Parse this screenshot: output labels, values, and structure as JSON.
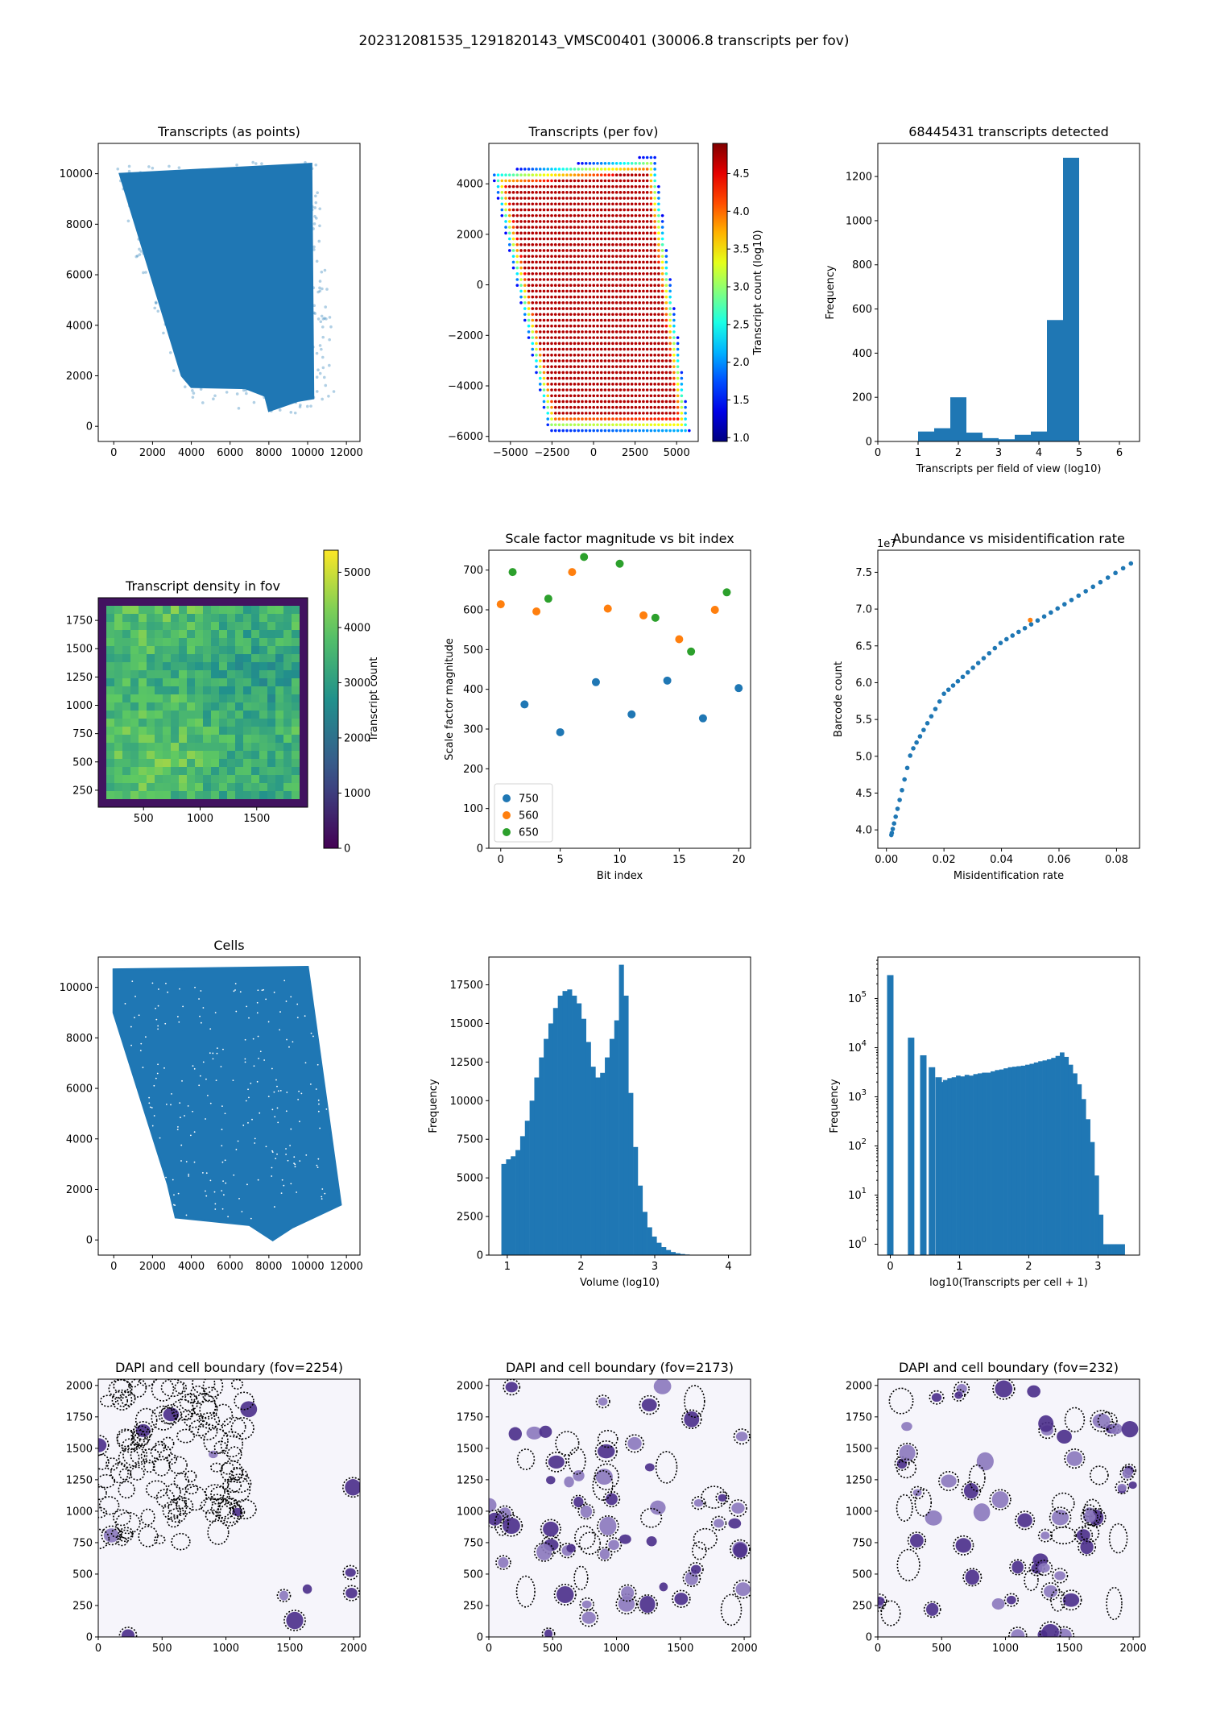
{
  "suptitle": "202312081535_1291820143_VMSC00401 (30006.8 transcripts per fov)",
  "colors": {
    "blue": "#1f77b4",
    "orange": "#ff7f0e",
    "green": "#2ca02c",
    "axis": "#000000"
  },
  "chart_data": [
    {
      "id": "transcripts_points",
      "type": "scatter",
      "title": "Transcripts (as points)",
      "xlabel": "",
      "ylabel": "",
      "xlim": [
        -800,
        12700
      ],
      "ylim": [
        -600,
        11200
      ],
      "xticks": [
        0,
        2000,
        4000,
        6000,
        8000,
        10000,
        12000
      ],
      "yticks": [
        0,
        2000,
        4000,
        6000,
        8000,
        10000
      ],
      "polygon": [
        [
          300,
          10000
        ],
        [
          10200,
          10400
        ],
        [
          10300,
          1100
        ],
        [
          9500,
          1000
        ],
        [
          8000,
          600
        ],
        [
          7800,
          1200
        ],
        [
          6800,
          1500
        ],
        [
          4000,
          1550
        ],
        [
          3500,
          2000
        ],
        [
          300,
          10000
        ]
      ],
      "halo_polygon": [
        [
          100,
          10300
        ],
        [
          10500,
          10550
        ],
        [
          11500,
          1200
        ],
        [
          9000,
          200
        ],
        [
          6000,
          600
        ],
        [
          3500,
          1050
        ],
        [
          2700,
          3300
        ],
        [
          1000,
          6900
        ],
        [
          100,
          10300
        ]
      ],
      "color": "#1f77b4"
    },
    {
      "id": "transcripts_per_fov",
      "type": "scatter",
      "title": "Transcripts (per fov)",
      "xlabel": "",
      "ylabel": "",
      "xlim": [
        -6300,
        6300
      ],
      "ylim": [
        -6200,
        5600
      ],
      "xticks": [
        -5000,
        -2500,
        0,
        2500,
        5000
      ],
      "yticks": [
        -6000,
        -4000,
        -2000,
        0,
        2000,
        4000
      ],
      "polygon": [
        [
          -6100,
          4500
        ],
        [
          3700,
          5100
        ],
        [
          5800,
          -5900
        ],
        [
          -2700,
          -5800
        ]
      ],
      "colorbar": {
        "label": "Transcript count (log10)",
        "range": [
          0.95,
          4.9
        ],
        "ticks": [
          1.0,
          1.5,
          2.0,
          2.5,
          3.0,
          3.5,
          4.0,
          4.5
        ],
        "cmap": "jet"
      }
    },
    {
      "id": "transcripts_hist",
      "type": "bar",
      "title": "68445431 transcripts detected",
      "xlabel": "Transcripts per field of view (log10)",
      "ylabel": "Frequency",
      "xlim": [
        0,
        6.5
      ],
      "ylim": [
        0,
        1350
      ],
      "xticks": [
        0,
        1,
        2,
        3,
        4,
        5,
        6
      ],
      "yticks": [
        0,
        200,
        400,
        600,
        800,
        1000,
        1200
      ],
      "bin_edges": [
        1.0,
        1.4,
        1.8,
        2.2,
        2.6,
        3.0,
        3.4,
        3.8,
        4.2,
        4.6,
        5.0
      ],
      "values": [
        45,
        60,
        200,
        40,
        15,
        10,
        30,
        45,
        550,
        1285
      ],
      "color": "#1f77b4"
    },
    {
      "id": "density_fov",
      "type": "heatmap",
      "title": "Transcript density in fov",
      "xlabel": "",
      "ylabel": "",
      "xlim": [
        100,
        1950
      ],
      "ylim": [
        100,
        1950
      ],
      "xticks": [
        500,
        1000,
        1500
      ],
      "yticks": [
        250,
        500,
        750,
        1000,
        1250,
        1500,
        1750
      ],
      "colorbar": {
        "label": "Transcript count",
        "range": [
          0,
          5400
        ],
        "ticks": [
          0,
          1000,
          2000,
          3000,
          4000,
          5000
        ],
        "cmap": "viridis"
      },
      "typical_value": 3500
    },
    {
      "id": "scale_factor",
      "type": "scatter",
      "title": "Scale factor magnitude vs bit index",
      "xlabel": "Bit index",
      "ylabel": "Scale factor magnitude",
      "xlim": [
        -1,
        21
      ],
      "ylim": [
        0,
        750
      ],
      "xticks": [
        0,
        5,
        10,
        15,
        20
      ],
      "yticks": [
        0,
        100,
        200,
        300,
        400,
        500,
        600,
        700
      ],
      "legend_position": "lower-left",
      "series": [
        {
          "name": "750",
          "color": "#1f77b4",
          "x": [
            2,
            5,
            8,
            11,
            14,
            17,
            20
          ],
          "y": [
            362,
            292,
            418,
            337,
            422,
            327,
            403
          ]
        },
        {
          "name": "560",
          "color": "#ff7f0e",
          "x": [
            0,
            3,
            6,
            9,
            12,
            15,
            18
          ],
          "y": [
            614,
            596,
            695,
            603,
            586,
            526,
            600
          ]
        },
        {
          "name": "650",
          "color": "#2ca02c",
          "x": [
            1,
            4,
            7,
            10,
            13,
            16,
            19
          ],
          "y": [
            695,
            628,
            733,
            716,
            580,
            495,
            644
          ]
        }
      ]
    },
    {
      "id": "abundance_misid",
      "type": "scatter",
      "title": "Abundance vs misidentification rate",
      "xlabel": "Misidentification rate",
      "ylabel": "Barcode count",
      "offset_text": "1e7",
      "xlim": [
        -0.003,
        0.088
      ],
      "ylim": [
        3.75,
        7.8
      ],
      "xticks": [
        0.0,
        0.02,
        0.04,
        0.06,
        0.08
      ],
      "yticks": [
        4.0,
        4.5,
        5.0,
        5.5,
        6.0,
        6.5,
        7.0,
        7.5
      ],
      "xtick_labels": [
        "0.00",
        "0.02",
        "0.04",
        "0.06",
        "0.08"
      ],
      "ytick_labels": [
        "4.0",
        "4.5",
        "5.0",
        "5.5",
        "6.0",
        "6.5",
        "7.0",
        "7.5"
      ],
      "curve_points": [
        [
          0.0017,
          3.93
        ],
        [
          0.0085,
          5.05
        ],
        [
          0.02,
          5.85
        ],
        [
          0.04,
          6.55
        ],
        [
          0.06,
          7.02
        ],
        [
          0.085,
          7.62
        ]
      ],
      "n_points": 50,
      "highlight": {
        "x": 0.05,
        "y": 6.85,
        "color": "#ff7f0e"
      },
      "color": "#1f77b4"
    },
    {
      "id": "cells",
      "type": "scatter",
      "title": "Cells",
      "xlabel": "",
      "ylabel": "",
      "xlim": [
        -800,
        12700
      ],
      "ylim": [
        -600,
        11200
      ],
      "xticks": [
        0,
        2000,
        4000,
        6000,
        8000,
        10000,
        12000
      ],
      "yticks": [
        0,
        2000,
        4000,
        6000,
        8000,
        10000
      ],
      "polygon": [
        [
          0,
          10700
        ],
        [
          10000,
          10800
        ],
        [
          11700,
          1400
        ],
        [
          9200,
          500
        ],
        [
          8200,
          0
        ],
        [
          7000,
          600
        ],
        [
          3200,
          900
        ],
        [
          2800,
          2200
        ],
        [
          0,
          9000
        ]
      ],
      "color": "#1f77b4"
    },
    {
      "id": "volume_hist",
      "type": "bar",
      "title": "",
      "xlabel": "Volume (log10)",
      "ylabel": "Frequency",
      "xlim": [
        0.75,
        4.3
      ],
      "ylim": [
        0,
        19300
      ],
      "xticks": [
        1,
        2,
        3,
        4
      ],
      "yticks": [
        0,
        2500,
        5000,
        7500,
        10000,
        12500,
        15000,
        17500
      ],
      "bin_start": 0.92,
      "bin_width": 0.0638,
      "values": [
        5900,
        6200,
        6400,
        6800,
        7700,
        8700,
        10000,
        11500,
        12800,
        14000,
        15000,
        16000,
        16800,
        17100,
        17200,
        16800,
        16300,
        15300,
        13800,
        12200,
        11500,
        11800,
        12800,
        14000,
        15200,
        18800,
        16800,
        10500,
        7000,
        4500,
        2800,
        1800,
        1200,
        800,
        520,
        330,
        200,
        120,
        70,
        40,
        20,
        10,
        6,
        3,
        2
      ],
      "color": "#1f77b4"
    },
    {
      "id": "tx_per_cell_hist",
      "type": "bar",
      "title": "",
      "xlabel": "log10(Transcripts per cell + 1)",
      "ylabel": "Frequency",
      "scale": "log",
      "xlim": [
        -0.18,
        3.6
      ],
      "ylim": [
        0.6,
        700000
      ],
      "xticks": [
        0,
        1,
        2,
        3
      ],
      "ytick_exponents": [
        0,
        1,
        2,
        3,
        4,
        5
      ],
      "spikes": {
        "x": [
          0.0,
          0.301,
          0.477,
          0.602,
          0.699
        ],
        "values": [
          300000,
          16000,
          7000,
          4000,
          2500
        ]
      },
      "bin_start": 0.699,
      "bin_width": 0.0625,
      "values": [
        2000,
        2200,
        2400,
        2500,
        2700,
        2600,
        2800,
        2700,
        2900,
        3000,
        3100,
        3100,
        3300,
        3500,
        3600,
        3800,
        4000,
        4100,
        4200,
        4300,
        4500,
        4700,
        5000,
        5300,
        5500,
        5800,
        6200,
        6800,
        8000,
        6500,
        4500,
        3000,
        1800,
        900,
        350,
        120,
        25,
        4,
        1,
        1,
        1,
        1,
        1
      ],
      "color": "#1f77b4"
    },
    {
      "id": "dapi_2254",
      "type": "heatmap",
      "title": "DAPI and cell boundary (fov=2254)",
      "xlim": [
        0,
        2050
      ],
      "ylim": [
        0,
        2050
      ],
      "xticks": [
        0,
        500,
        1000,
        1500,
        2000
      ],
      "yticks": [
        0,
        250,
        500,
        750,
        1000,
        1250,
        1500,
        1750,
        2000
      ],
      "cmap": "Purples"
    },
    {
      "id": "dapi_2173",
      "type": "heatmap",
      "title": "DAPI and cell boundary (fov=2173)",
      "xlim": [
        0,
        2050
      ],
      "ylim": [
        0,
        2050
      ],
      "xticks": [
        0,
        500,
        1000,
        1500,
        2000
      ],
      "yticks": [
        0,
        250,
        500,
        750,
        1000,
        1250,
        1500,
        1750,
        2000
      ],
      "cmap": "Purples"
    },
    {
      "id": "dapi_232",
      "type": "heatmap",
      "title": "DAPI and cell boundary (fov=232)",
      "xlim": [
        0,
        2050
      ],
      "ylim": [
        0,
        2050
      ],
      "xticks": [
        0,
        500,
        1000,
        1500,
        2000
      ],
      "yticks": [
        0,
        250,
        500,
        750,
        1000,
        1250,
        1500,
        1750,
        2000
      ],
      "cmap": "Purples"
    }
  ]
}
